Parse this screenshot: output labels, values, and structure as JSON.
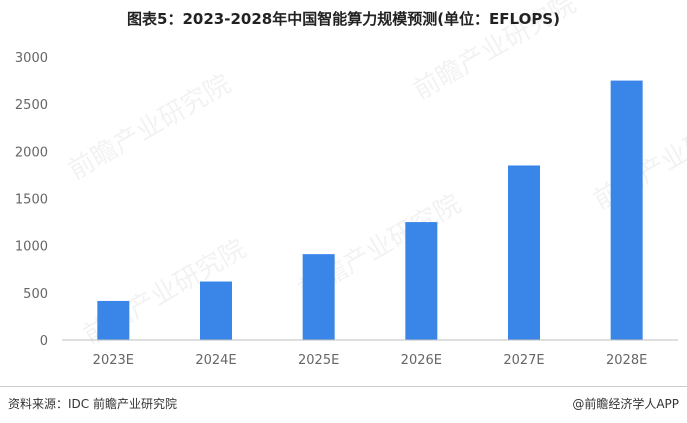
{
  "title": "图表5：2023-2028年中国智能算力规模预测(单位：EFLOPS)",
  "source": "资料来源：IDC 前瞻产业研究院",
  "credit": "@前瞻经济学人APP",
  "watermark": "前瞻产业研究院",
  "colors": {
    "bar": "#3a86e8",
    "axis_text": "#666666",
    "baseline": "#bfbfbf"
  },
  "chart_data": {
    "type": "bar",
    "categories": [
      "2023E",
      "2024E",
      "2025E",
      "2026E",
      "2027E",
      "2028E"
    ],
    "values": [
      414,
      620,
      910,
      1250,
      1850,
      2750
    ],
    "ylim": [
      0,
      3000
    ],
    "yticks": [
      0,
      500,
      1000,
      1500,
      2000,
      2500,
      3000
    ],
    "grid": false,
    "legend": "none"
  }
}
